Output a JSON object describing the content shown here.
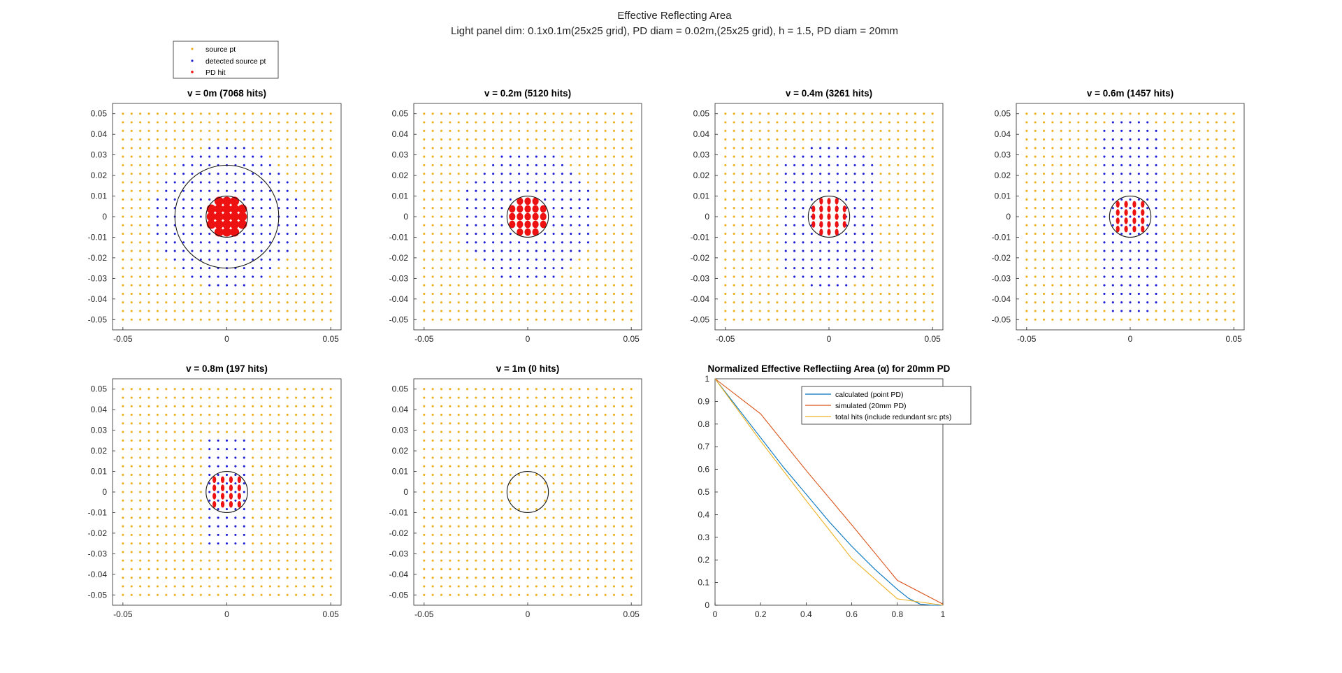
{
  "figure": {
    "title": "Effective Reflecting Area",
    "subtitle": "Light panel dim: 0.1x0.1m(25x25 grid), PD diam = 0.02m,(25x25 grid), h = 1.5, PD diam = 20mm"
  },
  "colors": {
    "source": "#edb120",
    "detected": "#1f1fd6",
    "hit": "#ee1111",
    "calculated": "#0072bd",
    "simulated": "#d95319",
    "total": "#edb120",
    "axis": "#262626"
  },
  "scatter_legend": {
    "entries": [
      "source pt",
      "detected source pt",
      "PD hit"
    ]
  },
  "chart_data": [
    {
      "type": "scatter",
      "title": "v = 0m (7068 hits)",
      "xlim": [
        -0.055,
        0.055
      ],
      "ylim": [
        -0.055,
        0.055
      ],
      "xticks": [
        "-0.05",
        "0",
        "0.05"
      ],
      "yticks": [
        "0.05",
        "0.04",
        "0.03",
        "0.02",
        "0.01",
        "0",
        "-0.01",
        "-0.02",
        "-0.03",
        "-0.04",
        "-0.05"
      ],
      "source_grid": {
        "min": -0.05,
        "max": 0.05,
        "n": 25
      },
      "detected_region": {
        "radius": 0.0345,
        "x_half": 1.0,
        "y_half": 1.0
      },
      "hit_grid": {
        "min": -0.0075,
        "max": 0.0075,
        "n": 5,
        "radius": 0.0095,
        "marker": "large"
      },
      "circles": [
        {
          "r": 0.01
        },
        {
          "r": 0.025
        }
      ]
    },
    {
      "type": "scatter",
      "title": "v = 0.2m (5120 hits)",
      "xlim": [
        -0.055,
        0.055
      ],
      "ylim": [
        -0.055,
        0.055
      ],
      "xticks": [
        "-0.05",
        "0",
        "0.05"
      ],
      "yticks": [
        "0.05",
        "0.04",
        "0.03",
        "0.02",
        "0.01",
        "0",
        "-0.01",
        "-0.02",
        "-0.03",
        "-0.04",
        "-0.05"
      ],
      "source_grid": {
        "min": -0.05,
        "max": 0.05,
        "n": 25
      },
      "detected_region": {
        "radius": 0.0325,
        "x_half": 1.0,
        "y_half": 1.0
      },
      "hit_grid": {
        "min": -0.0075,
        "max": 0.0075,
        "n": 5,
        "radius": 0.0095,
        "marker": "medium"
      },
      "circles": [
        {
          "r": 0.01
        }
      ]
    },
    {
      "type": "scatter",
      "title": "v = 0.4m (3261 hits)",
      "xlim": [
        -0.055,
        0.055
      ],
      "ylim": [
        -0.055,
        0.055
      ],
      "xticks": [
        "-0.05",
        "0",
        "0.05"
      ],
      "yticks": [
        "0.05",
        "0.04",
        "0.03",
        "0.02",
        "0.01",
        "0",
        "-0.01",
        "-0.02",
        "-0.03",
        "-0.04",
        "-0.05"
      ],
      "source_grid": {
        "min": -0.05,
        "max": 0.05,
        "n": 25
      },
      "detected_region": {
        "radius": 0.0345,
        "x_half": 0.023,
        "y_half": 1.0
      },
      "hit_grid": {
        "min": -0.0075,
        "max": 0.0075,
        "n": 5,
        "radius": 0.0095,
        "marker": "small"
      },
      "circles": [
        {
          "r": 0.01
        }
      ]
    },
    {
      "type": "scatter",
      "title": "v = 0.6m (1457 hits)",
      "xlim": [
        -0.055,
        0.055
      ],
      "ylim": [
        -0.055,
        0.055
      ],
      "xticks": [
        "-0.05",
        "0",
        "0.05"
      ],
      "yticks": [
        "0.05",
        "0.04",
        "0.03",
        "0.02",
        "0.01",
        "0",
        "-0.01",
        "-0.02",
        "-0.03",
        "-0.04",
        "-0.05"
      ],
      "source_grid": {
        "min": -0.05,
        "max": 0.05,
        "n": 25
      },
      "detected_region": {
        "radius": 0.0475,
        "x_half": 0.016,
        "y_half": 1.0
      },
      "hit_grid": {
        "min": -0.006,
        "max": 0.006,
        "n": 4,
        "radius": 0.0095,
        "marker": "small"
      },
      "circles": [
        {
          "r": 0.01
        }
      ]
    },
    {
      "type": "scatter",
      "title": "v = 0.8m (197 hits)",
      "xlim": [
        -0.055,
        0.055
      ],
      "ylim": [
        -0.055,
        0.055
      ],
      "xticks": [
        "-0.05",
        "0",
        "0.05"
      ],
      "yticks": [
        "0.05",
        "0.04",
        "0.03",
        "0.02",
        "0.01",
        "0",
        "-0.01",
        "-0.02",
        "-0.03",
        "-0.04",
        "-0.05"
      ],
      "source_grid": {
        "min": -0.05,
        "max": 0.05,
        "n": 25
      },
      "detected_region": {
        "radius": 0.031,
        "x_half": 0.009,
        "y_half": 0.026
      },
      "hit_grid": {
        "min": -0.006,
        "max": 0.006,
        "n": 4,
        "radius": 0.0095,
        "marker": "small"
      },
      "circles": [
        {
          "r": 0.01
        }
      ]
    },
    {
      "type": "scatter",
      "title": "v = 1m (0 hits)",
      "xlim": [
        -0.055,
        0.055
      ],
      "ylim": [
        -0.055,
        0.055
      ],
      "xticks": [
        "-0.05",
        "0",
        "0.05"
      ],
      "yticks": [
        "0.05",
        "0.04",
        "0.03",
        "0.02",
        "0.01",
        "0",
        "-0.01",
        "-0.02",
        "-0.03",
        "-0.04",
        "-0.05"
      ],
      "source_grid": {
        "min": -0.05,
        "max": 0.05,
        "n": 25
      },
      "detected_region": {
        "radius": 0,
        "x_half": 0,
        "y_half": 0
      },
      "hit_grid": {
        "min": 0,
        "max": 0,
        "n": 0,
        "radius": 0,
        "marker": "small"
      },
      "circles": [
        {
          "r": 0.01
        }
      ]
    },
    {
      "type": "line",
      "title": "Normalized Effective Reflectiing Area (α) for 20mm PD",
      "xlim": [
        0,
        1
      ],
      "ylim": [
        0,
        1
      ],
      "xticks": [
        "0",
        "0.2",
        "0.4",
        "0.6",
        "0.8",
        "1"
      ],
      "yticks": [
        "1",
        "0.9",
        "0.8",
        "0.7",
        "0.6",
        "0.5",
        "0.4",
        "0.3",
        "0.2",
        "0.1",
        "0"
      ],
      "legend": "top-right",
      "series": [
        {
          "name": "calculated (point PD)",
          "color_key": "calculated",
          "x": [
            0,
            0.1,
            0.2,
            0.3,
            0.4,
            0.5,
            0.6,
            0.7,
            0.8,
            0.85,
            0.9,
            0.95,
            1.0
          ],
          "y": [
            1,
            0.87,
            0.74,
            0.61,
            0.49,
            0.37,
            0.26,
            0.16,
            0.07,
            0.03,
            0.005,
            0,
            0
          ]
        },
        {
          "name": "simulated (20mm PD)",
          "color_key": "simulated",
          "x": [
            0,
            0.2,
            0.4,
            0.6,
            0.8,
            1.0
          ],
          "y": [
            1,
            0.845,
            0.595,
            0.355,
            0.11,
            0.005
          ]
        },
        {
          "name": "total hits (include redundant src pts)",
          "color_key": "total",
          "x": [
            0,
            0.2,
            0.4,
            0.6,
            0.8,
            1.0
          ],
          "y": [
            1,
            0.725,
            0.462,
            0.206,
            0.028,
            0
          ]
        }
      ]
    }
  ]
}
